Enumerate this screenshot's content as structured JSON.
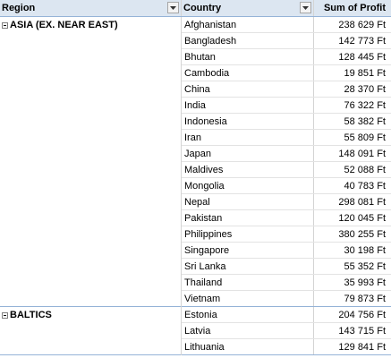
{
  "header": {
    "region_label": "Region",
    "country_label": "Country",
    "profit_label": "Sum of Profit"
  },
  "groups": [
    {
      "region": "ASIA (EX. NEAR EAST)",
      "rows": [
        {
          "country": "Afghanistan",
          "profit": "238 629 Ft"
        },
        {
          "country": "Bangladesh",
          "profit": "142 773 Ft"
        },
        {
          "country": "Bhutan",
          "profit": "128 445 Ft"
        },
        {
          "country": "Cambodia",
          "profit": "19 851 Ft"
        },
        {
          "country": "China",
          "profit": "28 370 Ft"
        },
        {
          "country": "India",
          "profit": "76 322 Ft"
        },
        {
          "country": "Indonesia",
          "profit": "58 382 Ft"
        },
        {
          "country": "Iran",
          "profit": "55 809 Ft"
        },
        {
          "country": "Japan",
          "profit": "148 091 Ft"
        },
        {
          "country": "Maldives",
          "profit": "52 088 Ft"
        },
        {
          "country": "Mongolia",
          "profit": "40 783 Ft"
        },
        {
          "country": "Nepal",
          "profit": "298 081 Ft"
        },
        {
          "country": "Pakistan",
          "profit": "120 045 Ft"
        },
        {
          "country": "Philippines",
          "profit": "380 255 Ft"
        },
        {
          "country": "Singapore",
          "profit": "30 198 Ft"
        },
        {
          "country": "Sri Lanka",
          "profit": "55 352 Ft"
        },
        {
          "country": "Thailand",
          "profit": "35 993 Ft"
        },
        {
          "country": "Vietnam",
          "profit": "79 873 Ft"
        }
      ]
    },
    {
      "region": "BALTICS",
      "rows": [
        {
          "country": "Estonia",
          "profit": "204 756 Ft"
        },
        {
          "country": "Latvia",
          "profit": "143 715 Ft"
        },
        {
          "country": "Lithuania",
          "profit": "129 841 Ft"
        }
      ]
    }
  ],
  "colors": {
    "header_bg": "#dce6f1",
    "group_border": "#95b3d7",
    "grid": "#d4d4d4"
  }
}
